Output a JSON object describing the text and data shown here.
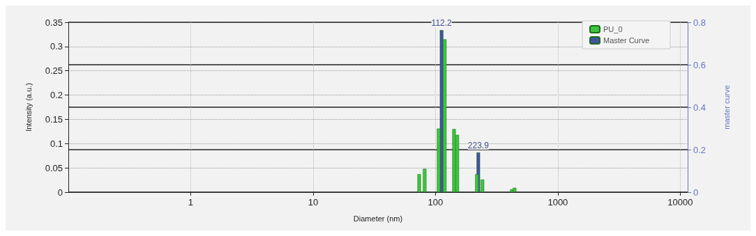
{
  "chart_data": {
    "type": "bar",
    "xlabel": "Diameter (nm)",
    "ylabel": "Intensity (a.u.)",
    "y2label": "master curve",
    "log": "x",
    "xlim": [
      0.1,
      11500
    ],
    "xticks": [
      1,
      10,
      100,
      1000,
      10000
    ],
    "ylim": [
      0,
      0.35
    ],
    "yticks": [
      0,
      0.05,
      0.1,
      0.15,
      0.2,
      0.25,
      0.3,
      0.35
    ],
    "y2lim": [
      0,
      0.8
    ],
    "y2ticks": [
      0,
      0.2,
      0.4,
      0.6,
      0.8
    ],
    "grid": true,
    "legend": "top right",
    "series": [
      {
        "name": "PU_0",
        "color": "#3dc43d",
        "x": [
          73.6,
          81.6,
          106.2,
          119,
          141.8,
          150.7,
          218,
          242,
          421,
          443
        ],
        "values": [
          0.037,
          0.048,
          0.131,
          0.315,
          0.13,
          0.118,
          0.037,
          0.026,
          0.006,
          0.009
        ]
      },
      {
        "name": "Master Curve",
        "color": "#3f53a0",
        "axis": "y2",
        "x": [
          112.2,
          223.9
        ],
        "values": [
          0.763,
          0.187
        ]
      }
    ],
    "annotations": [
      {
        "text": "112.2",
        "x": 112.2,
        "y": 0.334
      },
      {
        "text": "223.9",
        "x": 223.9,
        "y": 0.082
      }
    ]
  }
}
